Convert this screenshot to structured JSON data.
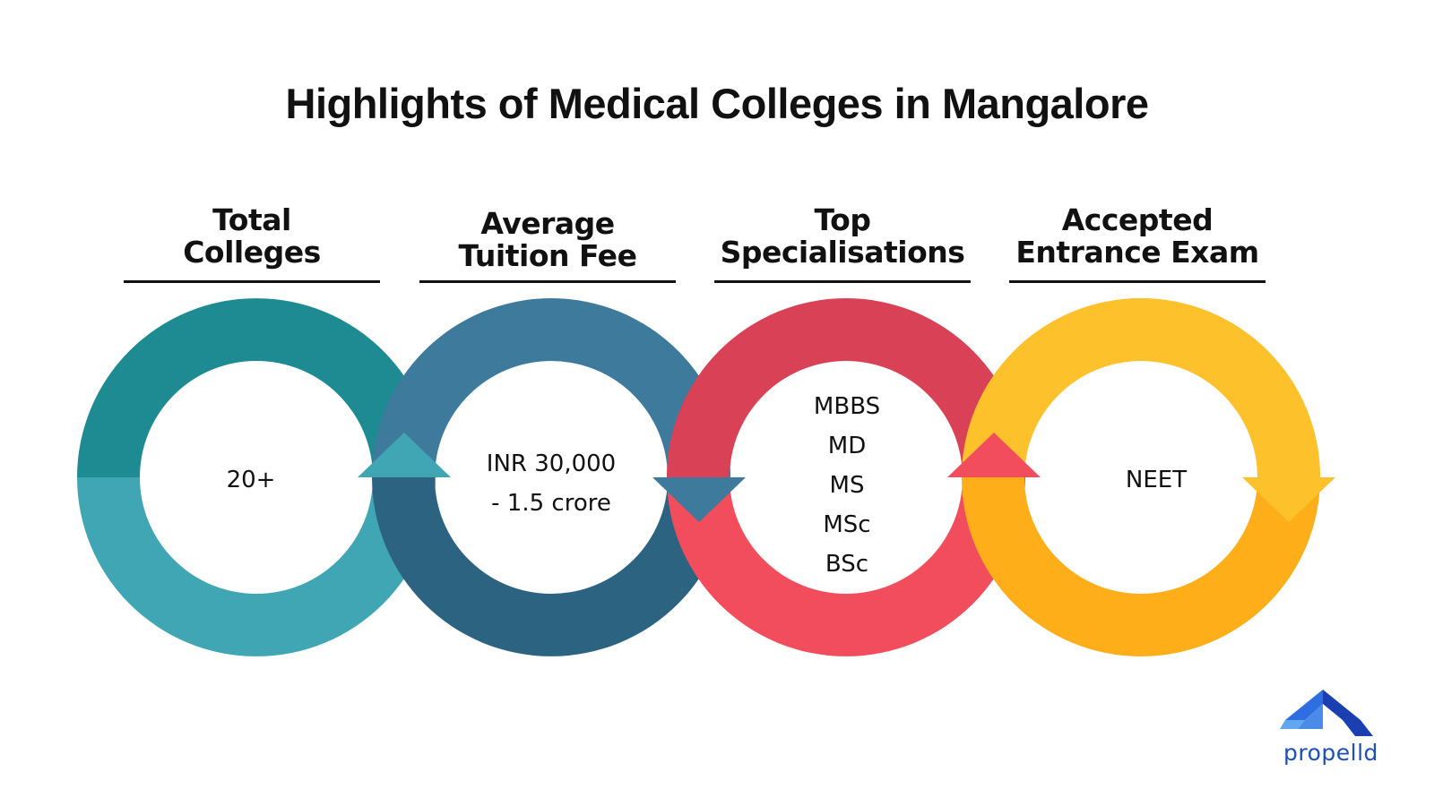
{
  "title": "Highlights of Medical Colleges in Mangalore",
  "steps": [
    {
      "heading": [
        "Total",
        "Colleges"
      ],
      "values": [
        "20+"
      ],
      "colors": {
        "top": "#1e8a91",
        "bottom": "#41a6b3"
      }
    },
    {
      "heading": [
        "Average",
        "Tuition Fee"
      ],
      "values": [
        "INR 30,000",
        "- 1.5 crore"
      ],
      "colors": {
        "top": "#3e7a9c",
        "bottom": "#2c6380"
      }
    },
    {
      "heading": [
        "Top",
        "Specialisations"
      ],
      "values": [
        "MBBS",
        "MD",
        "MS",
        "MSc",
        "BSc"
      ],
      "colors": {
        "top": "#d94157",
        "bottom": "#f14d5d"
      }
    },
    {
      "heading": [
        "Accepted",
        "Entrance Exam"
      ],
      "values": [
        "NEET"
      ],
      "colors": {
        "top": "#fdc12c",
        "bottom": "#fdae18"
      }
    }
  ],
  "logo": {
    "text": "propelld",
    "icon": "propelld-logo-icon",
    "colors": [
      "#1a3fb0",
      "#2f6ee0",
      "#5fa8f0"
    ]
  }
}
